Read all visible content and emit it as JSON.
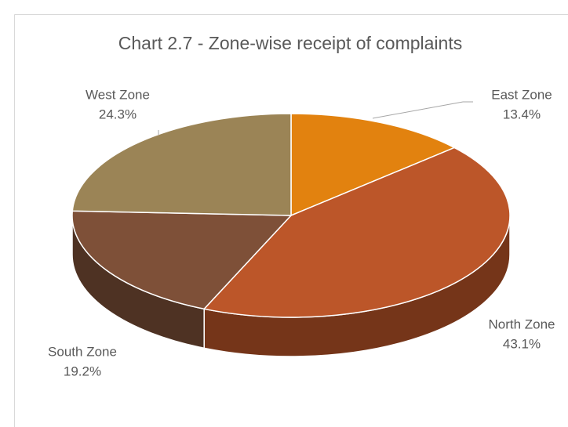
{
  "chart_data": {
    "type": "pie",
    "title": "Chart 2.7 - Zone-wise receipt of complaints",
    "categories": [
      "East Zone",
      "North Zone",
      "South Zone",
      "West Zone"
    ],
    "values": [
      13.4,
      43.1,
      19.2,
      24.3
    ],
    "value_labels": [
      "13.4%",
      "43.1%",
      "19.2%",
      "24.3%"
    ],
    "colors": [
      "#e2820f",
      "#bc5629",
      "#7e5038",
      "#9b8456"
    ]
  }
}
